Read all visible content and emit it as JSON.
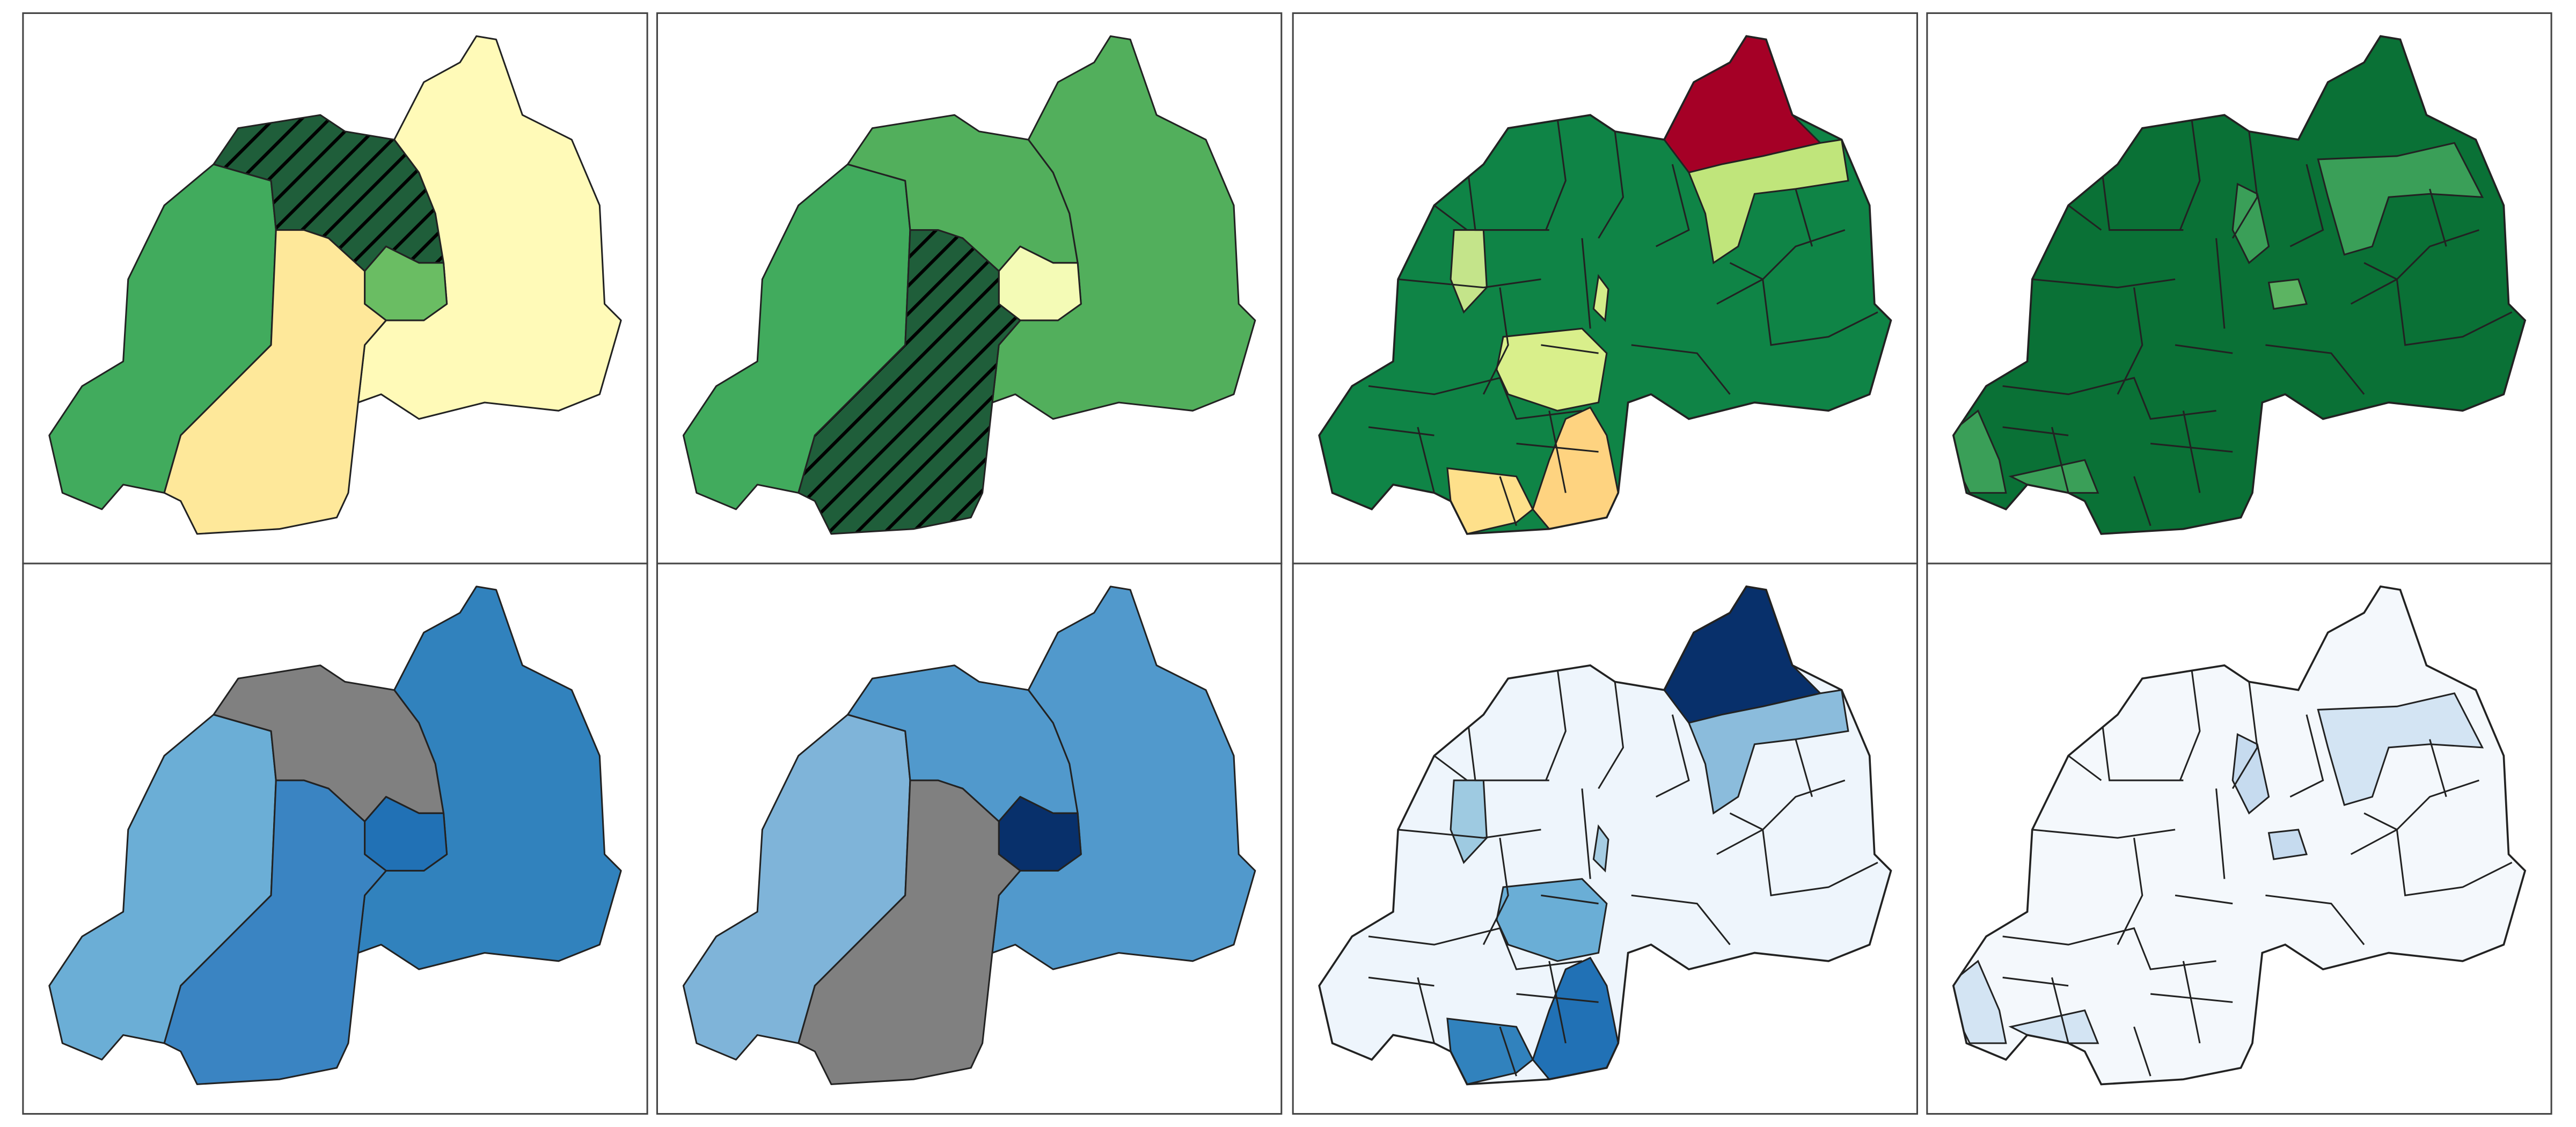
{
  "panels": [
    {
      "layer": "provinces",
      "fills": [
        "#41ab5d",
        "#1f5e3a",
        "#fffab8",
        "#6abd63",
        "#fee89a"
      ],
      "hatched": [
        false,
        true,
        false,
        false,
        false
      ]
    },
    {
      "layer": "provinces",
      "fills": [
        "#41ab5d",
        "#52af5c",
        "#52af5c",
        "#f4fbb6",
        "#1f5e3a"
      ],
      "hatched": [
        false,
        false,
        false,
        false,
        true
      ]
    },
    {
      "layer": "districts",
      "base": "#0f8446",
      "highlights": [
        "#a50026",
        "#c0e57b",
        "#c4e48a",
        "#d4ed8a",
        "#d9ef8b",
        "#fee08b",
        "#fed380"
      ]
    },
    {
      "layer": "districts",
      "base": "#0a7136",
      "highlights": [
        "#3a9f58",
        "#3a9f58",
        "#5cb462",
        "#3a9f58",
        "#3a9f58"
      ]
    },
    {
      "layer": "provinces",
      "fills": [
        "#6baed6",
        "#808080",
        "#3182bd",
        "#2171b5",
        "#3a84c2"
      ],
      "hatched": [
        false,
        false,
        false,
        false,
        false
      ]
    },
    {
      "layer": "provinces",
      "fills": [
        "#7fb4d9",
        "#5199cc",
        "#5199cc",
        "#08306b",
        "#808080"
      ],
      "hatched": [
        false,
        false,
        false,
        false,
        false
      ]
    },
    {
      "layer": "districts",
      "base": "#eef5fc",
      "highlights": [
        "#08306b",
        "#8bbcdc",
        "#9ecae1",
        "#a6cde3",
        "#6aaed6",
        "#3182bd",
        "#2171b5"
      ]
    },
    {
      "layer": "districts",
      "base": "#f4f8fc",
      "highlights": [
        "#d3e4f3",
        "#c6dbef",
        "#c6dbef",
        "#d3e4f3",
        "#d3e4f3"
      ]
    }
  ]
}
